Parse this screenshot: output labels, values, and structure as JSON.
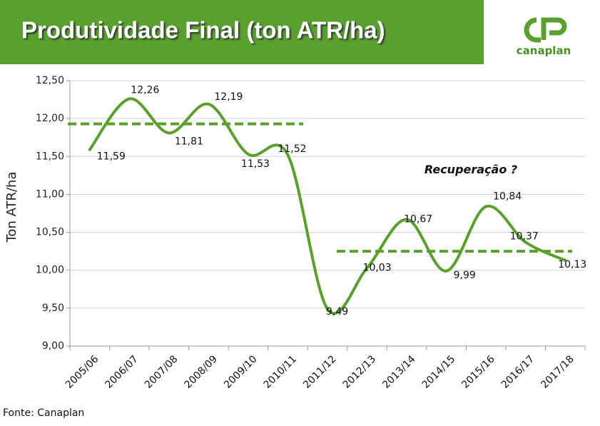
{
  "chart_data": {
    "type": "line",
    "title": "Produtividade Final (ton ATR/ha)",
    "logo_text": "canaplan",
    "y_label": "Ton ATR/ha",
    "annotation": "Recuperação ?",
    "source": "Fonte: Canaplan",
    "categories": [
      "2005/06",
      "2006/07",
      "2007/08",
      "2008/09",
      "2009/10",
      "2010/11",
      "2011/12",
      "2012/13",
      "2013/14",
      "2014/15",
      "2015/16",
      "2016/17",
      "2017/18"
    ],
    "series": [
      {
        "name": "Produtividade",
        "color": "#5aa02c",
        "values": [
          11.59,
          12.26,
          11.81,
          12.19,
          11.53,
          11.52,
          9.49,
          10.03,
          10.67,
          9.99,
          10.84,
          10.37,
          10.13
        ],
        "value_labels": [
          "11,59",
          "12,26",
          "11,81",
          "12,19",
          "11,53",
          "11,52",
          "9,49",
          "10,03",
          "10,67",
          "9,99",
          "10,84",
          "10,37",
          "10,13"
        ]
      }
    ],
    "reference_lines": [
      11.93,
      10.25
    ],
    "ylim": [
      9,
      12.5
    ],
    "yticks": [
      {
        "value": 9,
        "label": "9,00"
      },
      {
        "value": 9.5,
        "label": "9,50"
      },
      {
        "value": 10,
        "label": "10,00"
      },
      {
        "value": 10.5,
        "label": "10,50"
      },
      {
        "value": 11,
        "label": "11,00"
      },
      {
        "value": 11.5,
        "label": "11,50"
      },
      {
        "value": 12,
        "label": "12,00"
      },
      {
        "value": 12.5,
        "label": "12,50"
      }
    ],
    "grid": true
  }
}
